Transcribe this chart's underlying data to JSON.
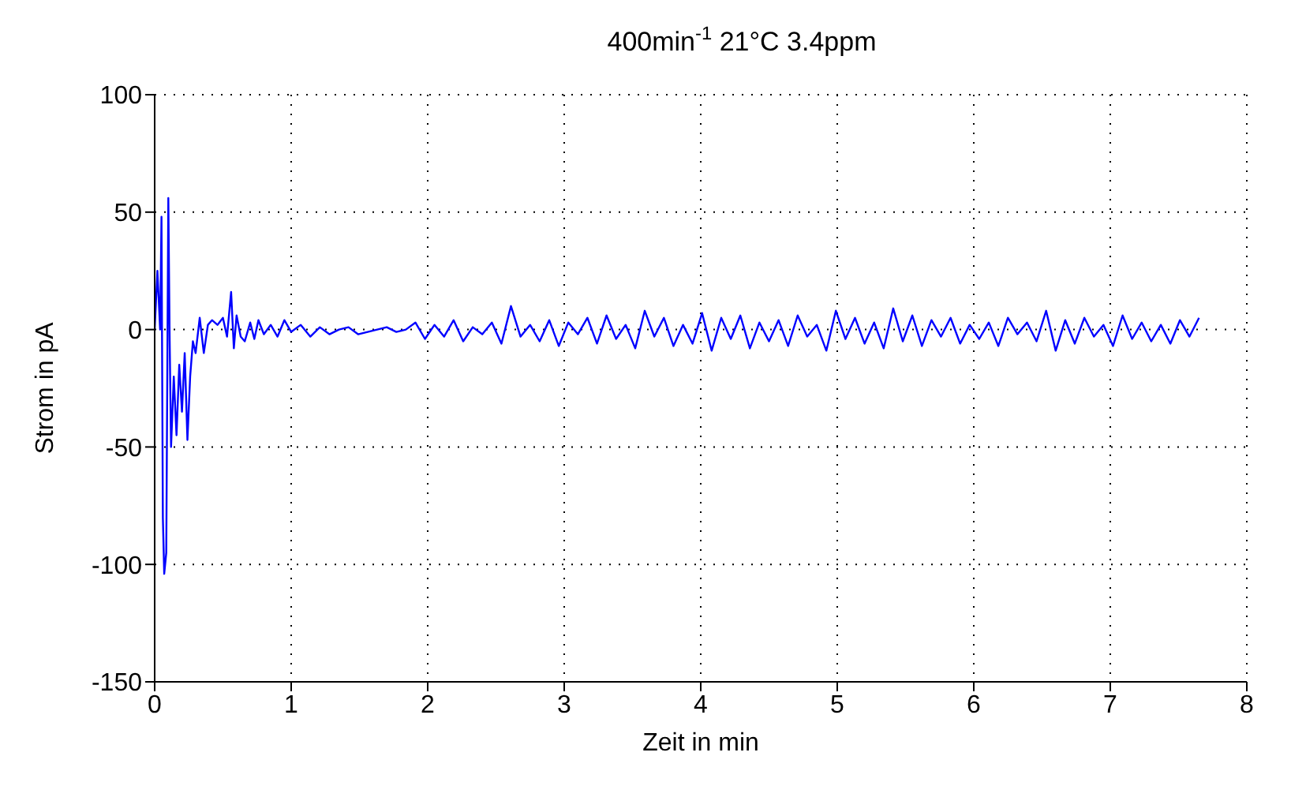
{
  "chart_data": {
    "type": "line",
    "title": "400min$^{-1}$ 21°C 3.4ppm",
    "xlabel": "Zeit in min",
    "ylabel": "Strom in pA",
    "xlim": [
      0,
      8
    ],
    "xticks": [
      0,
      1,
      2,
      3,
      4,
      5,
      6,
      7,
      8
    ],
    "ylim": [
      -150,
      100
    ],
    "yticks": [
      -150,
      -100,
      -50,
      0,
      50,
      100
    ],
    "grid": true,
    "marker": "none",
    "line_style": "solid",
    "series": [
      {
        "color": "#0000ff",
        "x": [
          0,
          0.02,
          0.04,
          0.05,
          0.06,
          0.07,
          0.085,
          0.1,
          0.11,
          0.12,
          0.14,
          0.16,
          0.18,
          0.2,
          0.22,
          0.24,
          0.26,
          0.28,
          0.3,
          0.33,
          0.36,
          0.39,
          0.42,
          0.46,
          0.5,
          0.53,
          0.56,
          0.58,
          0.6,
          0.63,
          0.66,
          0.7,
          0.73,
          0.76,
          0.8,
          0.85,
          0.9,
          0.95,
          1.0,
          1.07,
          1.14,
          1.21,
          1.28,
          1.35,
          1.42,
          1.49,
          1.56,
          1.63,
          1.7,
          1.77,
          1.84,
          1.91,
          1.98,
          2.05,
          2.12,
          2.19,
          2.26,
          2.33,
          2.4,
          2.47,
          2.54,
          2.61,
          2.68,
          2.75,
          2.82,
          2.89,
          2.96,
          3.03,
          3.1,
          3.17,
          3.24,
          3.31,
          3.38,
          3.45,
          3.52,
          3.59,
          3.66,
          3.73,
          3.8,
          3.87,
          3.94,
          4.01,
          4.08,
          4.15,
          4.22,
          4.29,
          4.36,
          4.43,
          4.5,
          4.57,
          4.64,
          4.71,
          4.78,
          4.85,
          4.92,
          4.99,
          5.06,
          5.13,
          5.2,
          5.27,
          5.34,
          5.41,
          5.48,
          5.55,
          5.62,
          5.69,
          5.76,
          5.83,
          5.9,
          5.97,
          6.04,
          6.11,
          6.18,
          6.25,
          6.32,
          6.39,
          6.46,
          6.53,
          6.6,
          6.67,
          6.74,
          6.81,
          6.88,
          6.95,
          7.02,
          7.09,
          7.16,
          7.23,
          7.3,
          7.37,
          7.44,
          7.51,
          7.58,
          7.65
        ],
        "values": [
          0,
          25,
          0,
          48,
          -80,
          -104,
          -95,
          56,
          -5,
          -50,
          -20,
          -45,
          -15,
          -35,
          -10,
          -47,
          -20,
          -5,
          -10,
          5,
          -10,
          2,
          4,
          2,
          5,
          -3,
          16,
          -8,
          6,
          -3,
          -5,
          3,
          -4,
          4,
          -2,
          2,
          -3,
          4,
          -1,
          2,
          -3,
          1,
          -2,
          0,
          1,
          -2,
          -1,
          0,
          1,
          -1,
          0,
          3,
          -4,
          2,
          -3,
          4,
          -5,
          1,
          -2,
          3,
          -6,
          10,
          -3,
          2,
          -5,
          4,
          -7,
          3,
          -2,
          5,
          -6,
          6,
          -4,
          2,
          -8,
          8,
          -3,
          5,
          -7,
          2,
          -6,
          7,
          -9,
          5,
          -4,
          6,
          -8,
          3,
          -5,
          4,
          -7,
          6,
          -3,
          2,
          -9,
          8,
          -4,
          5,
          -6,
          3,
          -8,
          9,
          -5,
          6,
          -7,
          4,
          -3,
          5,
          -6,
          2,
          -4,
          3,
          -7,
          5,
          -2,
          3,
          -5,
          8,
          -9,
          4,
          -6,
          5,
          -3,
          2,
          -7,
          6,
          -4,
          3,
          -5,
          2,
          -6,
          4,
          -3,
          5
        ]
      }
    ]
  }
}
